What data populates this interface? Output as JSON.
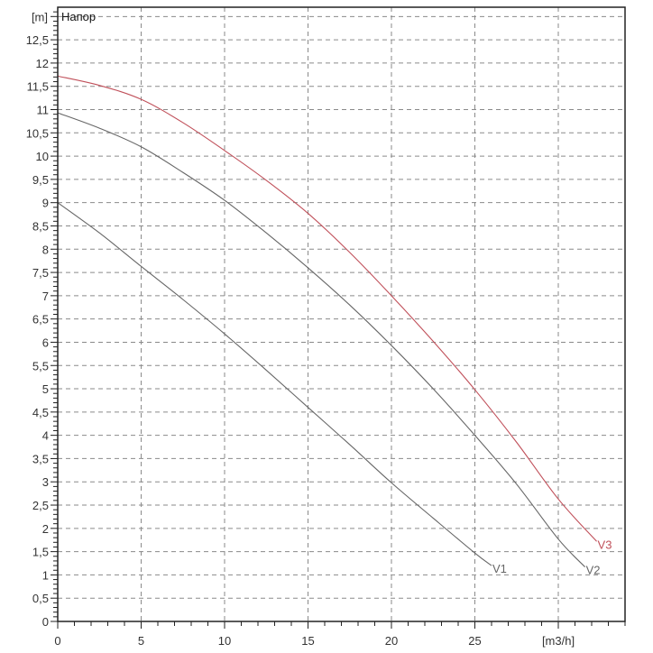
{
  "chart_data": {
    "type": "line",
    "title": "Напор",
    "xlabel": "[m3/h]",
    "ylabel": "[m]",
    "xlim": [
      0,
      34
    ],
    "ylim": [
      0,
      13.2
    ],
    "x_ticks": [
      0,
      5,
      10,
      15,
      20,
      25
    ],
    "x_tick_labels": [
      "0",
      "5",
      "10",
      "15",
      "20",
      "25"
    ],
    "x_unit_label_at": 30,
    "x_minor_step": 1,
    "y_ticks": [
      0,
      0.5,
      1,
      1.5,
      2,
      2.5,
      3,
      3.5,
      4,
      4.5,
      5,
      5.5,
      6,
      6.5,
      7,
      7.5,
      8,
      8.5,
      9,
      9.5,
      10,
      10.5,
      11,
      11.5,
      12,
      12.5
    ],
    "y_tick_labels": [
      "0",
      "0,5",
      "1",
      "1,5",
      "2",
      "2,5",
      "3",
      "3,5",
      "4",
      "4,5",
      "5",
      "5,5",
      "6",
      "6,5",
      "7",
      "7,5",
      "8",
      "8,5",
      "9",
      "9,5",
      "10",
      "10,5",
      "11",
      "11,5",
      "12",
      "12,5"
    ],
    "y_unit_label_at": 13,
    "y_minor_step": 0.1,
    "grid": true,
    "grid_style": "dashed",
    "series": [
      {
        "name": "V1",
        "color": "#666666",
        "x": [
          0,
          2.5,
          5,
          7.5,
          10,
          12.5,
          15,
          17.5,
          20,
          22.5,
          25,
          26
        ],
        "values": [
          9.0,
          8.35,
          7.63,
          6.92,
          6.18,
          5.4,
          4.6,
          3.8,
          2.98,
          2.22,
          1.47,
          1.2
        ]
      },
      {
        "name": "V2",
        "color": "#666666",
        "x": [
          0,
          2.5,
          5,
          7.5,
          10,
          12.5,
          15,
          17.5,
          20,
          22.5,
          25,
          27.5,
          30,
          31.6
        ],
        "values": [
          10.93,
          10.6,
          10.2,
          9.65,
          9.05,
          8.35,
          7.6,
          6.8,
          5.93,
          5.0,
          4.0,
          2.95,
          1.77,
          1.17
        ]
      },
      {
        "name": "V3",
        "color": "#c0505a",
        "x": [
          0,
          2.5,
          5,
          7.5,
          10,
          12.5,
          15,
          17.5,
          20,
          22.5,
          25,
          27.5,
          30,
          32.3
        ],
        "values": [
          11.72,
          11.52,
          11.22,
          10.72,
          10.12,
          9.48,
          8.77,
          7.93,
          7.0,
          6.02,
          4.98,
          3.85,
          2.63,
          1.72
        ]
      }
    ]
  },
  "labels": {
    "title": "Напор",
    "y_unit": "[m]",
    "x_unit": "[m3/h]"
  },
  "colors": {
    "axis": "#222222",
    "grid": "#8a8a8a",
    "v1": "#666666",
    "v2": "#666666",
    "v3": "#c0505a"
  }
}
